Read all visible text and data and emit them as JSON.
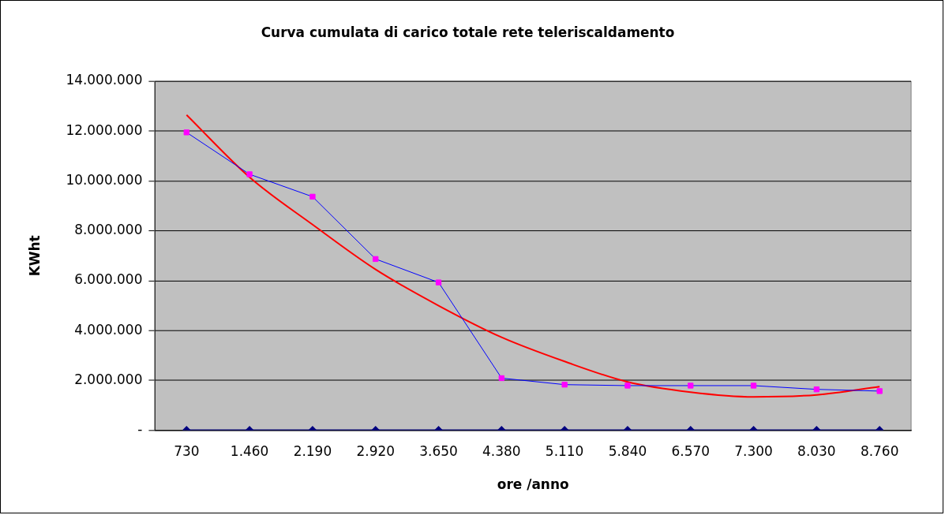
{
  "chart_data": {
    "type": "line",
    "title": "Curva cumulata di carico totale rete teleriscaldamento",
    "xlabel": "ore /anno",
    "ylabel": "KWht",
    "categories": [
      "730",
      "1.460",
      "2.190",
      "2.920",
      "3.650",
      "4.380",
      "5.110",
      "5.840",
      "6.570",
      "7.300",
      "8.030",
      "8.760"
    ],
    "series": [
      {
        "color": "#0000ff",
        "colors": [
          "#ff00ff",
          "#ff00ff",
          "#ff00ff",
          "#ff00ff",
          "#ff00ff",
          "#ff00ff",
          "#ff00ff",
          "#ff00ff",
          "#ff00ff",
          "#ff00ff",
          "#ff00ff",
          "#ff00ff"
        ],
        "marker": "square",
        "values": [
          11950000,
          10270000,
          9370000,
          6870000,
          5930000,
          2090000,
          1830000,
          1790000,
          1790000,
          1790000,
          1640000,
          1570000
        ]
      },
      {
        "color": "#000080",
        "marker": "diamond",
        "values": [
          0,
          0,
          0,
          0,
          0,
          0,
          0,
          0,
          0,
          0,
          0,
          0
        ]
      },
      {
        "color": "#ff0000",
        "marker": "none",
        "values": [
          12650000,
          10150000,
          8250000,
          6450000,
          5000000,
          3730000,
          2760000,
          1940000,
          1530000,
          1340000,
          1420000,
          1750000
        ]
      }
    ],
    "ylim": [
      0,
      14000000
    ],
    "yticks": [
      {
        "value": 0,
        "label": "-"
      },
      {
        "value": 2000000,
        "label": "2.000.000"
      },
      {
        "value": 4000000,
        "label": "4.000.000"
      },
      {
        "value": 6000000,
        "label": "6.000.000"
      },
      {
        "value": 8000000,
        "label": "8.000.000"
      },
      {
        "value": 10000000,
        "label": "10.000.000"
      },
      {
        "value": 12000000,
        "label": "12.000.000"
      },
      {
        "value": 14000000,
        "label": "14.000.000"
      }
    ],
    "grid": "y",
    "legend": false
  }
}
